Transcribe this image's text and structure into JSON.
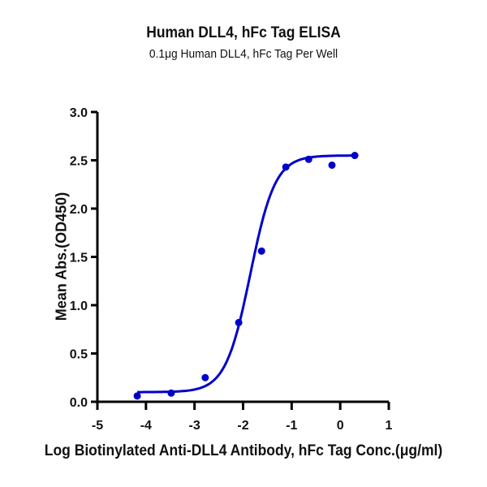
{
  "chart_data": {
    "type": "scatter",
    "title": "Human DLL4, hFc Tag ELISA",
    "subtitle": "0.1μg Human DLL4, hFc Tag Per Well",
    "xlabel": "Log Biotinylated Anti-DLL4 Antibody, hFc Tag Conc.(μg/ml)",
    "ylabel": "Mean Abs.(OD450)",
    "xlim": [
      -5,
      1
    ],
    "ylim": [
      0,
      3.0
    ],
    "xticks": [
      "-5",
      "-4",
      "-3",
      "-2",
      "-1",
      "0",
      "1"
    ],
    "yticks": [
      "0.0",
      "0.5",
      "1.0",
      "1.5",
      "2.0",
      "2.5",
      "3.0"
    ],
    "grid": false,
    "legend": null,
    "series": [
      {
        "name": "Mean Abs.(OD450)",
        "color": "#0000CC",
        "x": [
          -4.18,
          -3.48,
          -2.78,
          -2.09,
          -1.62,
          -1.12,
          -0.65,
          -0.17,
          0.3
        ],
        "y": [
          0.06,
          0.09,
          0.25,
          0.82,
          1.56,
          2.43,
          2.51,
          2.45,
          2.55
        ]
      }
    ],
    "fit": {
      "model": "4PL sigmoidal",
      "bottom": 0.1,
      "top": 2.55,
      "logEC50": -1.85,
      "hill": 1.7,
      "x_range": [
        -4.18,
        0.3
      ]
    }
  }
}
